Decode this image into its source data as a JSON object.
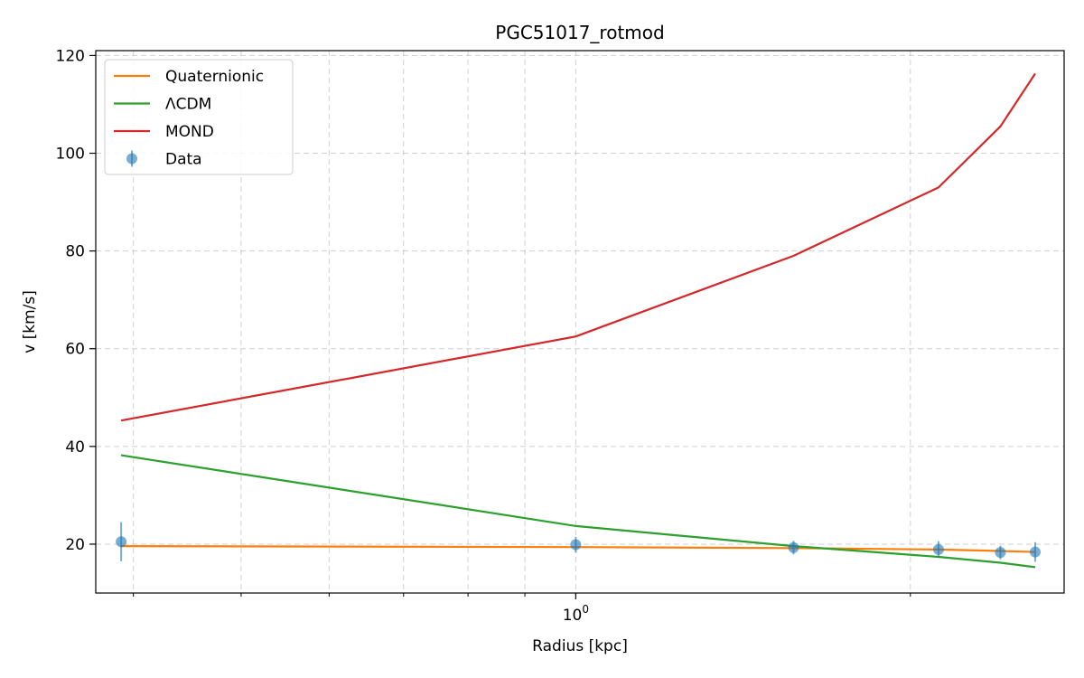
{
  "chart_data": {
    "type": "line",
    "title": "PGC51017_rotmod",
    "xlabel": "Radius [kpc]",
    "ylabel": "v [km/s]",
    "xscale": "log",
    "xlim": [
      0.37,
      2.75
    ],
    "ylim": [
      10,
      121
    ],
    "yticks": [
      20,
      40,
      60,
      80,
      100,
      120
    ],
    "xtick_major": {
      "value": 1,
      "label_base": "10",
      "label_exp": "0"
    },
    "grid": true,
    "legend_position": "upper-left",
    "series": [
      {
        "name": "Quaternionic",
        "color": "#ff7f0e",
        "kind": "line",
        "x": [
          0.39,
          1.0,
          1.57,
          2.12,
          2.41,
          2.59
        ],
        "y": [
          19.6,
          19.4,
          19.2,
          18.9,
          18.6,
          18.4
        ]
      },
      {
        "name": "ΛCDM",
        "color": "#2ca02c",
        "kind": "line",
        "x": [
          0.39,
          1.0,
          1.57,
          2.12,
          2.41,
          2.59
        ],
        "y": [
          38.2,
          23.7,
          19.6,
          17.4,
          16.2,
          15.3
        ]
      },
      {
        "name": "MOND",
        "color": "#d62728",
        "kind": "line",
        "x": [
          0.39,
          1.0,
          1.57,
          2.12,
          2.41,
          2.59
        ],
        "y": [
          45.3,
          62.5,
          79.0,
          93.0,
          105.5,
          116.3
        ]
      },
      {
        "name": "Data",
        "color": "#1f77b4",
        "kind": "errorbar",
        "x": [
          0.39,
          1.0,
          1.57,
          2.12,
          2.41,
          2.59
        ],
        "y": [
          20.5,
          19.9,
          19.3,
          18.9,
          18.3,
          18.4
        ],
        "yerr": [
          4.0,
          1.6,
          1.4,
          1.7,
          1.4,
          2.0
        ]
      }
    ]
  }
}
